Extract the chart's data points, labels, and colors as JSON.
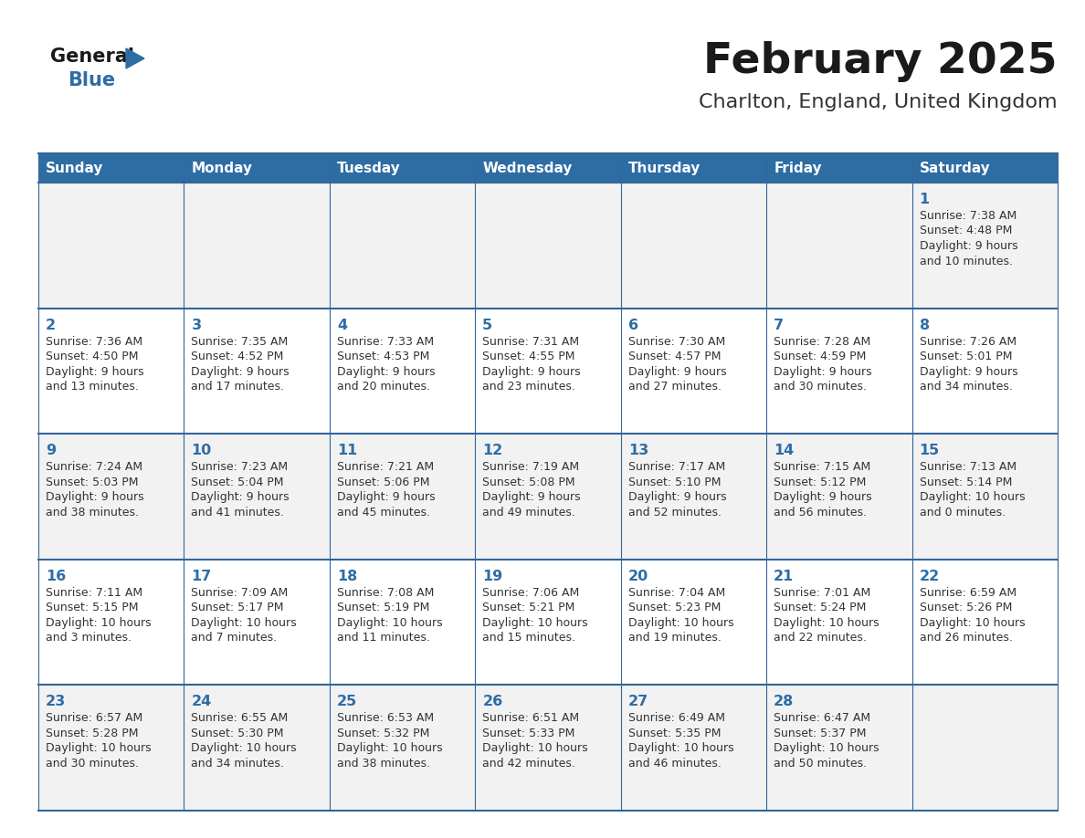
{
  "title": "February 2025",
  "subtitle": "Charlton, England, United Kingdom",
  "header_bg": "#2E6DA4",
  "header_text_color": "#FFFFFF",
  "day_names": [
    "Sunday",
    "Monday",
    "Tuesday",
    "Wednesday",
    "Thursday",
    "Friday",
    "Saturday"
  ],
  "grid_line_color": "#336699",
  "cell_bg_row0": "#F2F2F2",
  "cell_bg_row1": "#FFFFFF",
  "date_color": "#2E6DA4",
  "info_color": "#333333",
  "calendar": [
    [
      null,
      null,
      null,
      null,
      null,
      null,
      {
        "day": "1",
        "sunrise": "7:38 AM",
        "sunset": "4:48 PM",
        "daylight": "9 hours",
        "daylight2": "and 10 minutes."
      }
    ],
    [
      {
        "day": "2",
        "sunrise": "7:36 AM",
        "sunset": "4:50 PM",
        "daylight": "9 hours",
        "daylight2": "and 13 minutes."
      },
      {
        "day": "3",
        "sunrise": "7:35 AM",
        "sunset": "4:52 PM",
        "daylight": "9 hours",
        "daylight2": "and 17 minutes."
      },
      {
        "day": "4",
        "sunrise": "7:33 AM",
        "sunset": "4:53 PM",
        "daylight": "9 hours",
        "daylight2": "and 20 minutes."
      },
      {
        "day": "5",
        "sunrise": "7:31 AM",
        "sunset": "4:55 PM",
        "daylight": "9 hours",
        "daylight2": "and 23 minutes."
      },
      {
        "day": "6",
        "sunrise": "7:30 AM",
        "sunset": "4:57 PM",
        "daylight": "9 hours",
        "daylight2": "and 27 minutes."
      },
      {
        "day": "7",
        "sunrise": "7:28 AM",
        "sunset": "4:59 PM",
        "daylight": "9 hours",
        "daylight2": "and 30 minutes."
      },
      {
        "day": "8",
        "sunrise": "7:26 AM",
        "sunset": "5:01 PM",
        "daylight": "9 hours",
        "daylight2": "and 34 minutes."
      }
    ],
    [
      {
        "day": "9",
        "sunrise": "7:24 AM",
        "sunset": "5:03 PM",
        "daylight": "9 hours",
        "daylight2": "and 38 minutes."
      },
      {
        "day": "10",
        "sunrise": "7:23 AM",
        "sunset": "5:04 PM",
        "daylight": "9 hours",
        "daylight2": "and 41 minutes."
      },
      {
        "day": "11",
        "sunrise": "7:21 AM",
        "sunset": "5:06 PM",
        "daylight": "9 hours",
        "daylight2": "and 45 minutes."
      },
      {
        "day": "12",
        "sunrise": "7:19 AM",
        "sunset": "5:08 PM",
        "daylight": "9 hours",
        "daylight2": "and 49 minutes."
      },
      {
        "day": "13",
        "sunrise": "7:17 AM",
        "sunset": "5:10 PM",
        "daylight": "9 hours",
        "daylight2": "and 52 minutes."
      },
      {
        "day": "14",
        "sunrise": "7:15 AM",
        "sunset": "5:12 PM",
        "daylight": "9 hours",
        "daylight2": "and 56 minutes."
      },
      {
        "day": "15",
        "sunrise": "7:13 AM",
        "sunset": "5:14 PM",
        "daylight": "10 hours",
        "daylight2": "and 0 minutes."
      }
    ],
    [
      {
        "day": "16",
        "sunrise": "7:11 AM",
        "sunset": "5:15 PM",
        "daylight": "10 hours",
        "daylight2": "and 3 minutes."
      },
      {
        "day": "17",
        "sunrise": "7:09 AM",
        "sunset": "5:17 PM",
        "daylight": "10 hours",
        "daylight2": "and 7 minutes."
      },
      {
        "day": "18",
        "sunrise": "7:08 AM",
        "sunset": "5:19 PM",
        "daylight": "10 hours",
        "daylight2": "and 11 minutes."
      },
      {
        "day": "19",
        "sunrise": "7:06 AM",
        "sunset": "5:21 PM",
        "daylight": "10 hours",
        "daylight2": "and 15 minutes."
      },
      {
        "day": "20",
        "sunrise": "7:04 AM",
        "sunset": "5:23 PM",
        "daylight": "10 hours",
        "daylight2": "and 19 minutes."
      },
      {
        "day": "21",
        "sunrise": "7:01 AM",
        "sunset": "5:24 PM",
        "daylight": "10 hours",
        "daylight2": "and 22 minutes."
      },
      {
        "day": "22",
        "sunrise": "6:59 AM",
        "sunset": "5:26 PM",
        "daylight": "10 hours",
        "daylight2": "and 26 minutes."
      }
    ],
    [
      {
        "day": "23",
        "sunrise": "6:57 AM",
        "sunset": "5:28 PM",
        "daylight": "10 hours",
        "daylight2": "and 30 minutes."
      },
      {
        "day": "24",
        "sunrise": "6:55 AM",
        "sunset": "5:30 PM",
        "daylight": "10 hours",
        "daylight2": "and 34 minutes."
      },
      {
        "day": "25",
        "sunrise": "6:53 AM",
        "sunset": "5:32 PM",
        "daylight": "10 hours",
        "daylight2": "and 38 minutes."
      },
      {
        "day": "26",
        "sunrise": "6:51 AM",
        "sunset": "5:33 PM",
        "daylight": "10 hours",
        "daylight2": "and 42 minutes."
      },
      {
        "day": "27",
        "sunrise": "6:49 AM",
        "sunset": "5:35 PM",
        "daylight": "10 hours",
        "daylight2": "and 46 minutes."
      },
      {
        "day": "28",
        "sunrise": "6:47 AM",
        "sunset": "5:37 PM",
        "daylight": "10 hours",
        "daylight2": "and 50 minutes."
      },
      null
    ]
  ]
}
